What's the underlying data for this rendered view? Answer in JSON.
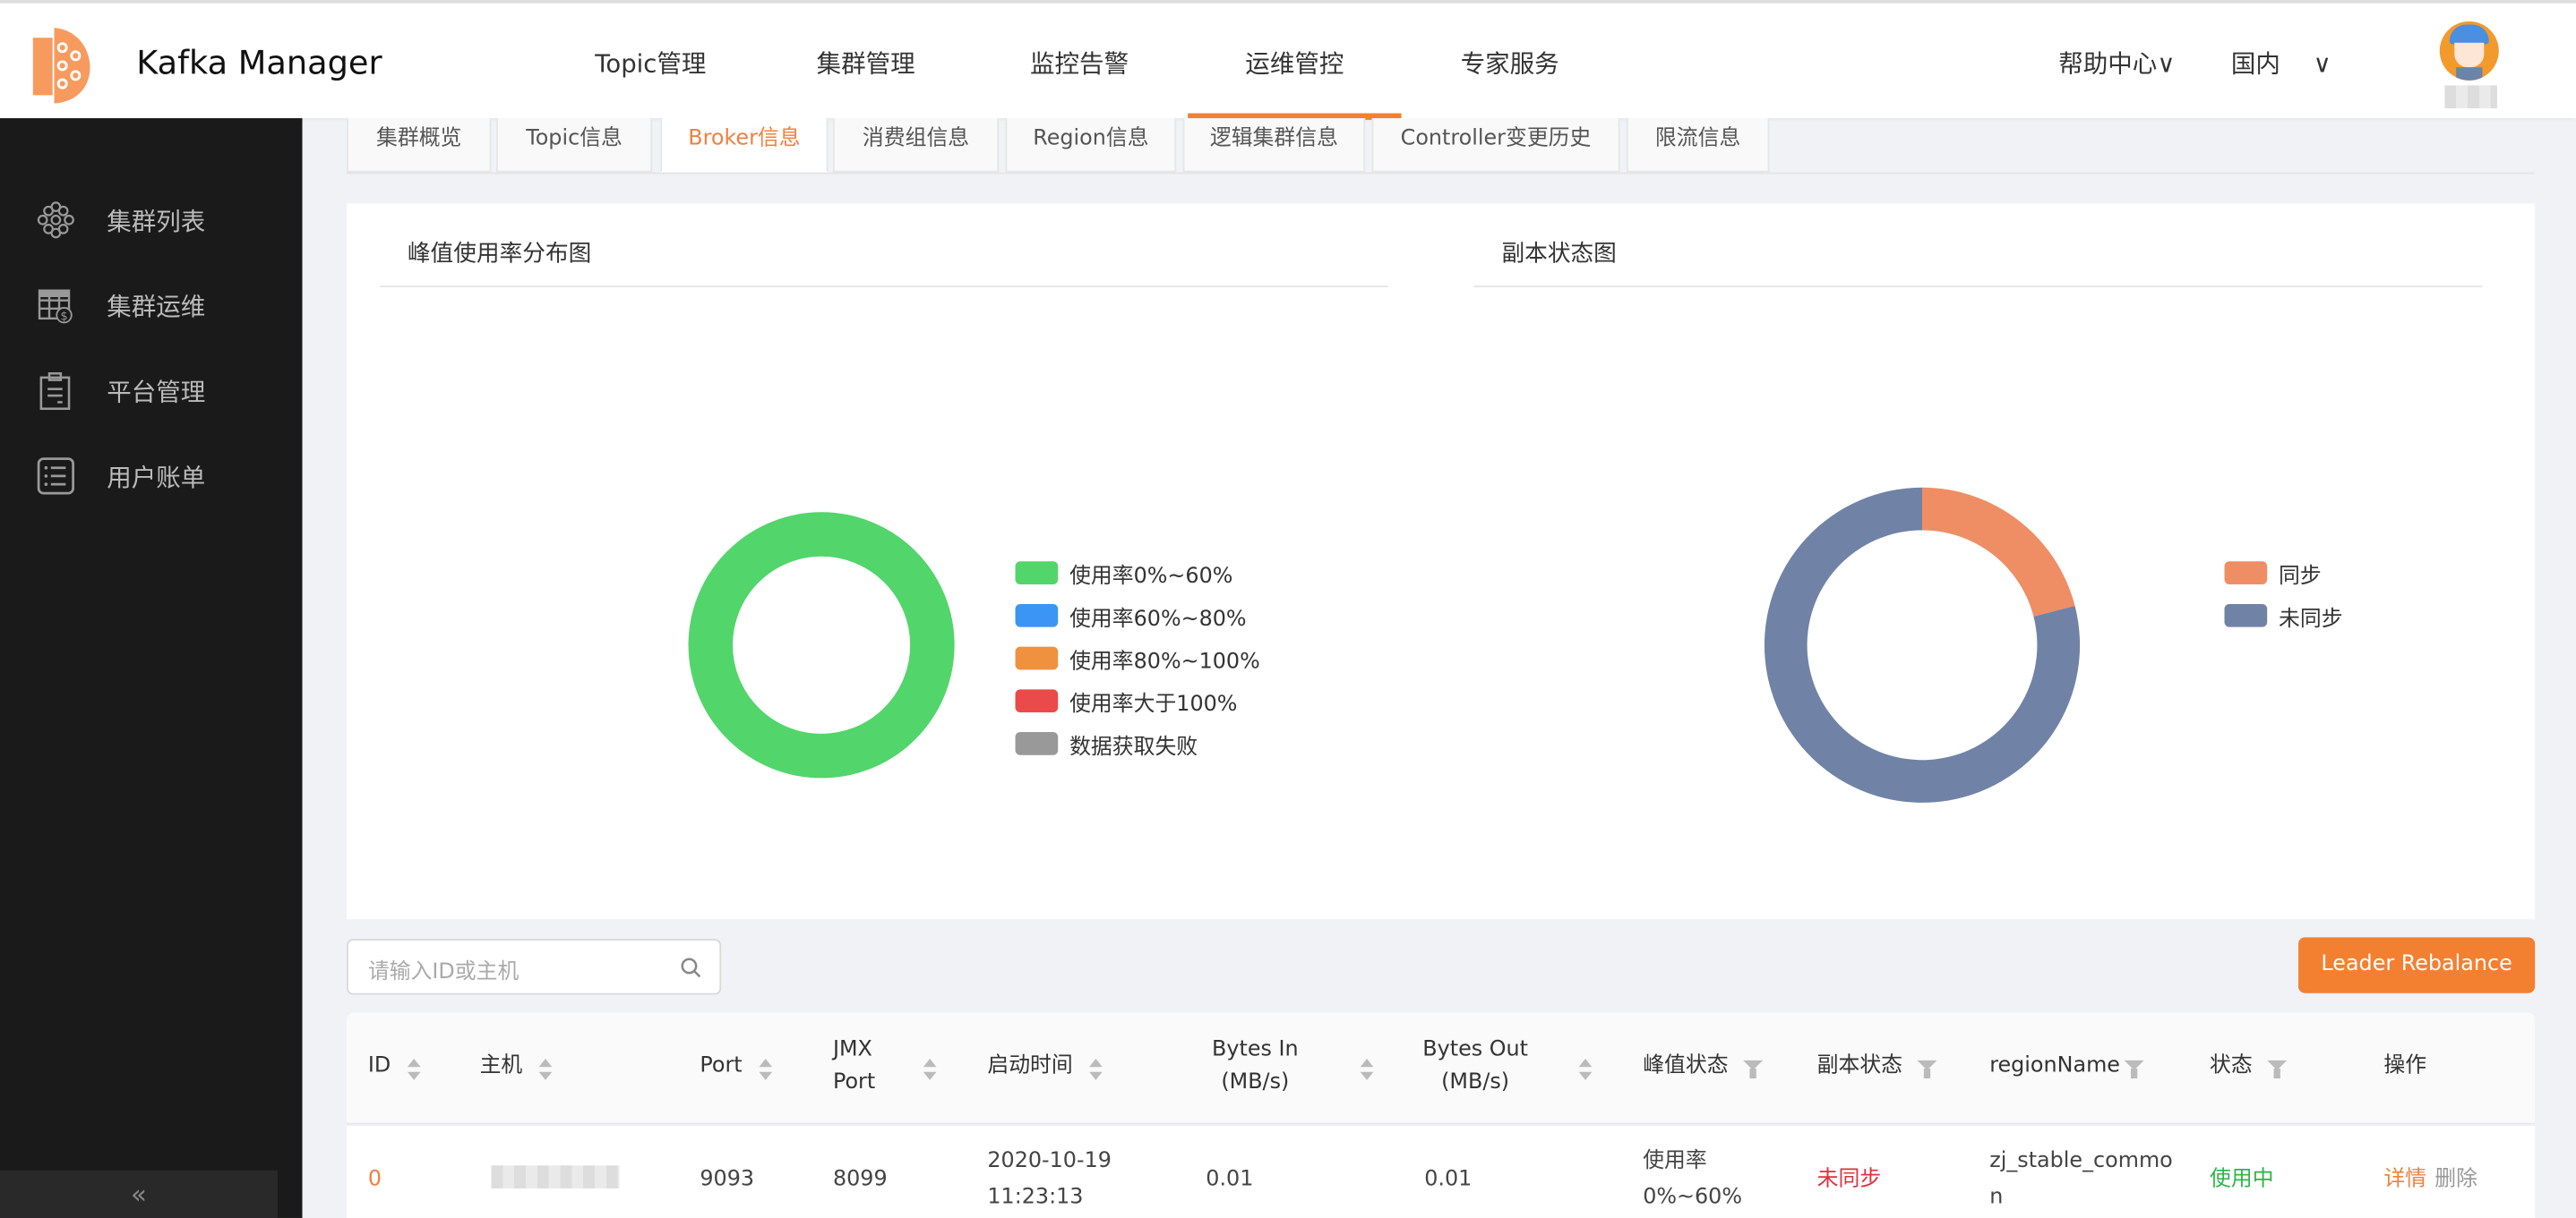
{
  "header": {
    "app_title": "Kafka Manager",
    "nav": [
      "Topic管理",
      "集群管理",
      "监控告警",
      "运维管控",
      "专家服务"
    ],
    "active_nav": "运维管控",
    "help": "帮助中心",
    "region": "国内"
  },
  "sidebar": {
    "items": [
      {
        "label": "集群列表",
        "icon": "honeycomb-icon"
      },
      {
        "label": "集群运维",
        "icon": "table-dollar-icon"
      },
      {
        "label": "平台管理",
        "icon": "clipboard-icon"
      },
      {
        "label": "用户账单",
        "icon": "list-icon"
      }
    ],
    "collapse": "«"
  },
  "tabs": [
    "集群概览",
    "Topic信息",
    "Broker信息",
    "消费组信息",
    "Region信息",
    "逻辑集群信息",
    "Controller变更历史",
    "限流信息"
  ],
  "active_tab": "Broker信息",
  "colors": {
    "accent": "#f38031",
    "green": "#52d56a",
    "blue": "#3a95f5",
    "orange": "#f0913f",
    "red": "#eb4a4a",
    "gray": "#999999",
    "sync": "#ef8e65",
    "unsync": "#7083a6"
  },
  "chart_data": [
    {
      "type": "pie",
      "title": "峰值使用率分布图",
      "donut": true,
      "legend_position": "right",
      "categories": [
        "使用率0%~60%",
        "使用率60%~80%",
        "使用率80%~100%",
        "使用率大于100%",
        "数据获取失败"
      ],
      "values": [
        100,
        0,
        0,
        0,
        0
      ],
      "colors": [
        "#52d56a",
        "#3a95f5",
        "#f0913f",
        "#eb4a4a",
        "#999999"
      ]
    },
    {
      "type": "pie",
      "title": "副本状态图",
      "donut": true,
      "legend_position": "right",
      "categories": [
        "同步",
        "未同步"
      ],
      "values": [
        21,
        79
      ],
      "colors": [
        "#ef8e65",
        "#7083a6"
      ]
    }
  ],
  "search": {
    "placeholder": "请输入ID或主机"
  },
  "rebalance_label": "Leader Rebalance",
  "table": {
    "columns": [
      "ID",
      "主机",
      "Port",
      "JMX Port",
      "启动时间",
      "Bytes In (MB/s)",
      "Bytes Out (MB/s)",
      "峰值状态",
      "副本状态",
      "regionName",
      "状态",
      "操作"
    ],
    "rows": [
      {
        "id": "0",
        "port": "9093",
        "jmx_port": "8099",
        "start_date": "2020-10-19",
        "start_time": "11:23:13",
        "bytes_in": "0.01",
        "bytes_out": "0.01",
        "peak_1": "使用率",
        "peak_2": "0%~60%",
        "replica": "未同步",
        "region_1": "zj_stable_commo",
        "region_2": "n",
        "status": "使用中",
        "action_detail": "详情",
        "action_delete": "删除"
      }
    ]
  }
}
